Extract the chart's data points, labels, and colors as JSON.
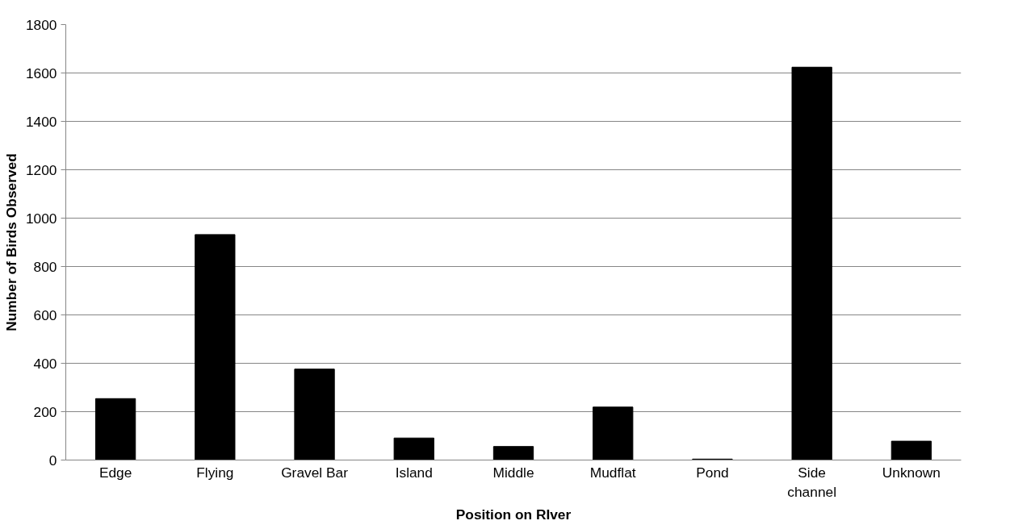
{
  "chart_data": {
    "type": "bar",
    "xlabel": "Position on RIver",
    "ylabel": "Number of Birds Observed",
    "categories": [
      "Edge",
      "Flying",
      "Gravel Bar",
      "Island",
      "Middle",
      "Mudflat",
      "Pond",
      "Side\nchannel",
      "Unknown"
    ],
    "values": [
      254,
      932,
      376,
      91,
      56,
      219,
      4,
      1624,
      78
    ],
    "color": "#000000",
    "ylim": [
      0,
      1800
    ],
    "yticks": [
      0,
      200,
      400,
      600,
      800,
      1000,
      1200,
      1400,
      1600,
      1800
    ],
    "grid": "y"
  }
}
